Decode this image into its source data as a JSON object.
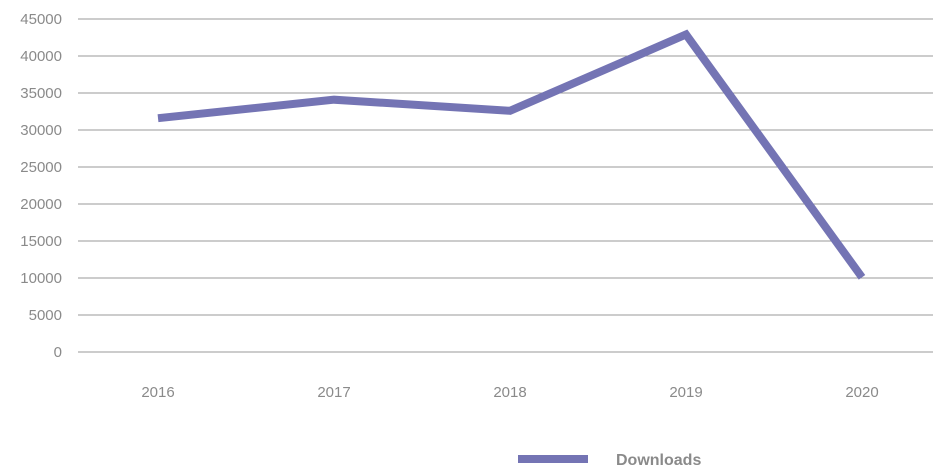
{
  "chart_data": {
    "type": "line",
    "title": "",
    "xlabel": "",
    "ylabel": "",
    "categories": [
      "2016",
      "2017",
      "2018",
      "2019",
      "2020"
    ],
    "series": [
      {
        "name": "Downloads",
        "values": [
          31600,
          34100,
          32600,
          42900,
          10100
        ],
        "color": "#7474b4"
      }
    ],
    "ylim": [
      0,
      45000
    ],
    "yticks": [
      0,
      5000,
      10000,
      15000,
      20000,
      25000,
      30000,
      35000,
      40000,
      45000
    ],
    "grid": true,
    "gridColor": "#9a9a9a",
    "labelColor": "#8a8a8a",
    "legend": "bottom"
  }
}
